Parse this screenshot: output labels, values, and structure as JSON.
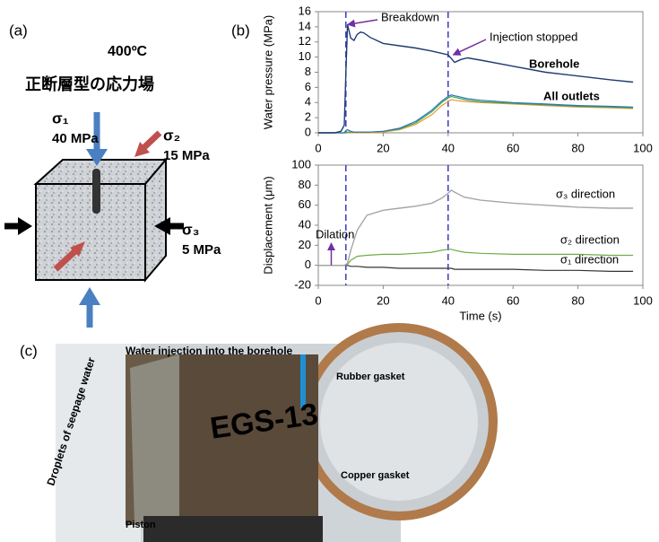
{
  "panel_labels": [
    "(a)",
    "(b)",
    "(c)"
  ],
  "diagram": {
    "temperature": "400ºC",
    "title": "正断層型の応力場",
    "stresses": [
      {
        "symbol": "σ₁",
        "value": "40 MPa",
        "color": "#4a7fc1"
      },
      {
        "symbol": "σ₂",
        "value": "15 MPa",
        "color": "#c0504d"
      },
      {
        "symbol": "σ₃",
        "value": "5 MPa",
        "color": "#000000"
      }
    ]
  },
  "photo": {
    "labels": [
      "Water injection into the borehole",
      "Rubber gasket",
      "Droplets of seepage water",
      "Copper gasket",
      "Piston",
      "EGS-13"
    ]
  },
  "chart_data": [
    {
      "type": "line",
      "y_label": "Water pressure (MPa)",
      "xlim": [
        0,
        100
      ],
      "ylim": [
        0,
        16
      ],
      "xticks": [
        0,
        20,
        40,
        60,
        80,
        100
      ],
      "yticks": [
        0,
        2,
        4,
        6,
        8,
        10,
        12,
        14,
        16
      ],
      "event_times": [
        8.5,
        40
      ],
      "annotations": [
        {
          "text": "Breakdown",
          "x": 8.5,
          "y": 14.3
        },
        {
          "text": "Injection stopped",
          "x": 41,
          "y": 10.3
        }
      ],
      "x": [
        0,
        5,
        7,
        8,
        8.5,
        9,
        10,
        11,
        12,
        13,
        14,
        16,
        20,
        25,
        30,
        35,
        38,
        40,
        41,
        42,
        44,
        46,
        50,
        60,
        70,
        80,
        90,
        97
      ],
      "series": [
        {
          "name": "Borehole",
          "color": "#1f3b73",
          "values": [
            0,
            0,
            0.2,
            1,
            8,
            14.3,
            12.5,
            12.2,
            13,
            13.3,
            13.2,
            12.6,
            11.8,
            11.5,
            11.2,
            10.8,
            10.5,
            10.3,
            9.8,
            9.3,
            9.7,
            9.9,
            9.6,
            8.8,
            8,
            7.5,
            7,
            6.7
          ]
        },
        {
          "name": "All outlets",
          "color": "#2e75b6",
          "values": [
            0,
            0,
            0,
            0,
            0.3,
            0.4,
            0.2,
            0.1,
            0.1,
            0.1,
            0.1,
            0.1,
            0.2,
            0.6,
            1.5,
            3,
            4.2,
            4.8,
            5,
            4.9,
            4.7,
            4.5,
            4.3,
            4,
            3.8,
            3.6,
            3.5,
            3.4
          ]
        },
        {
          "color": "#3aa657",
          "values": [
            0,
            0,
            0,
            0,
            0,
            0.1,
            0.1,
            0.1,
            0.1,
            0.1,
            0.1,
            0.1,
            0.2,
            0.5,
            1.3,
            2.8,
            4,
            4.6,
            4.8,
            4.7,
            4.5,
            4.3,
            4.1,
            3.9,
            3.7,
            3.5,
            3.4,
            3.3
          ]
        },
        {
          "color": "#ed9a2e",
          "values": [
            0,
            0,
            0,
            0,
            0,
            0,
            0,
            0,
            0,
            0,
            0,
            0,
            0.1,
            0.4,
            1.1,
            2.4,
            3.6,
            4.1,
            4.4,
            4.3,
            4.2,
            4.1,
            4,
            3.8,
            3.6,
            3.4,
            3.3,
            3.2
          ]
        }
      ]
    },
    {
      "type": "line",
      "y_label": "Displacement (μm)",
      "x_label": "Time (s)",
      "xlim": [
        0,
        100
      ],
      "ylim": [
        -20,
        100
      ],
      "xticks": [
        0,
        20,
        40,
        60,
        80,
        100
      ],
      "yticks": [
        -20,
        0,
        20,
        40,
        60,
        80,
        100
      ],
      "event_times": [
        8.5,
        40
      ],
      "annotations": [
        {
          "text": "Dilation",
          "x": 4,
          "y": 0
        }
      ],
      "x": [
        0,
        5,
        8,
        9,
        10,
        12,
        15,
        20,
        25,
        30,
        35,
        38,
        40,
        41,
        42,
        45,
        50,
        60,
        70,
        80,
        90,
        97
      ],
      "series": [
        {
          "name": "σ₃ direction",
          "color": "#a6a6a6",
          "values": [
            0,
            0,
            0,
            2,
            15,
            35,
            50,
            55,
            57,
            59,
            62,
            67,
            72,
            75,
            73,
            68,
            65,
            62,
            60,
            58,
            57,
            57
          ]
        },
        {
          "name": "σ₂ direction",
          "color": "#70ad47",
          "values": [
            0,
            0,
            0,
            1,
            5,
            9,
            10,
            11,
            11,
            12,
            13,
            15,
            16,
            16,
            15,
            13,
            12,
            11,
            11,
            11,
            10,
            10
          ]
        },
        {
          "name": "σ₁ direction",
          "color": "#333333",
          "values": [
            0,
            0,
            0,
            0,
            -1,
            -1,
            -2,
            -2,
            -3,
            -3,
            -3,
            -3,
            -3,
            -3,
            -4,
            -4,
            -4,
            -4,
            -5,
            -5,
            -6,
            -6
          ]
        }
      ]
    }
  ]
}
